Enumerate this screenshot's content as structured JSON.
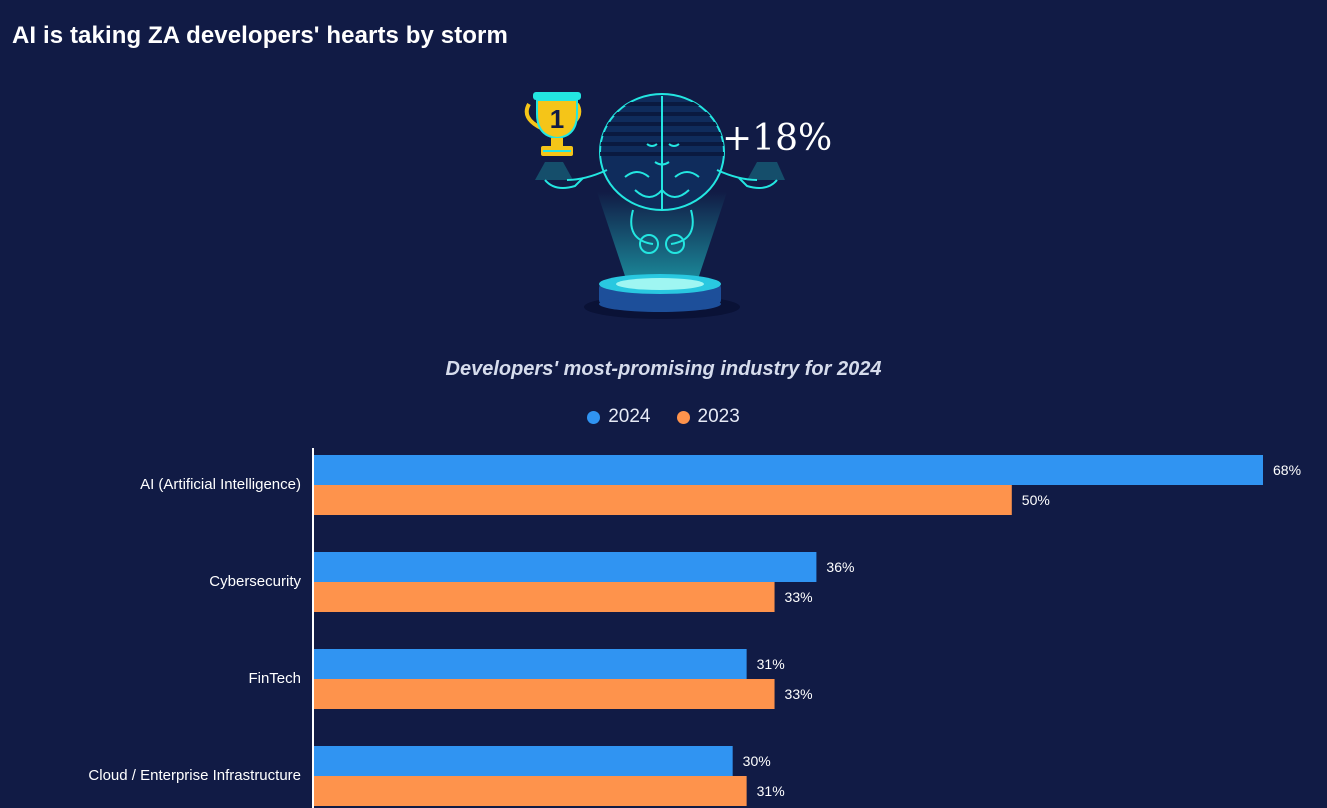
{
  "page": {
    "title": "AI is taking ZA developers' hearts by storm",
    "hero_value": "+18%",
    "trophy_number": "1"
  },
  "colors": {
    "background": "#111b45",
    "series_2024": "#3094f2",
    "series_2023": "#fe934c",
    "hologram": "#23e6e1"
  },
  "chart_data": {
    "type": "bar",
    "orientation": "horizontal",
    "title": "Developers' most-promising industry for 2024",
    "categories": [
      "AI (Artificial Intelligence)",
      "Cybersecurity",
      "FinTech",
      "Cloud / Enterprise Infrastructure"
    ],
    "series": [
      {
        "name": "2024",
        "values": [
          68,
          36,
          31,
          30
        ]
      },
      {
        "name": "2023",
        "values": [
          50,
          33,
          33,
          31
        ]
      }
    ],
    "value_suffix": "%",
    "xlim": [
      0,
      68
    ],
    "legend_position": "top-center",
    "grid": false
  }
}
